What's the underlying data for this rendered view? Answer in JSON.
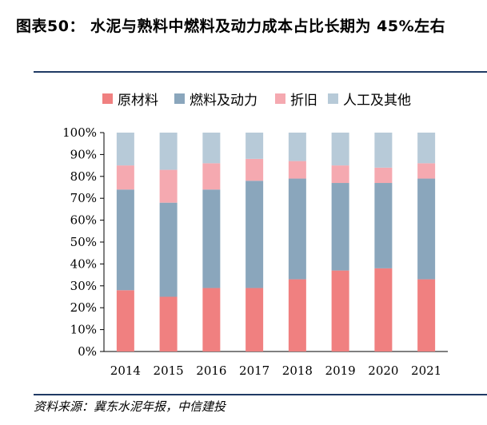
{
  "header": {
    "title": "图表50： 水泥与熟料中燃料及动力成本占比长期为 45%左右"
  },
  "footer": {
    "source": "资料来源：冀东水泥年报，中信建投"
  },
  "chart_data": {
    "type": "bar",
    "stacked": true,
    "categories": [
      "2014",
      "2015",
      "2016",
      "2017",
      "2018",
      "2019",
      "2020",
      "2021"
    ],
    "series": [
      {
        "name": "原材料",
        "color": "#f08080",
        "values": [
          28,
          25,
          29,
          29,
          33,
          37,
          38,
          33
        ]
      },
      {
        "name": "燃料及动力",
        "color": "#8aa6bc",
        "values": [
          46,
          43,
          45,
          49,
          46,
          40,
          39,
          46
        ]
      },
      {
        "name": "折旧",
        "color": "#f5a9b0",
        "values": [
          11,
          15,
          12,
          10,
          8,
          8,
          7,
          7
        ]
      },
      {
        "name": "人工及其他",
        "color": "#b7cad8",
        "values": [
          15,
          17,
          14,
          12,
          13,
          15,
          16,
          14
        ]
      }
    ],
    "yticks": [
      "0%",
      "10%",
      "20%",
      "30%",
      "40%",
      "50%",
      "60%",
      "70%",
      "80%",
      "90%",
      "100%"
    ],
    "ylim": [
      0,
      100
    ],
    "legend_position": "top"
  }
}
